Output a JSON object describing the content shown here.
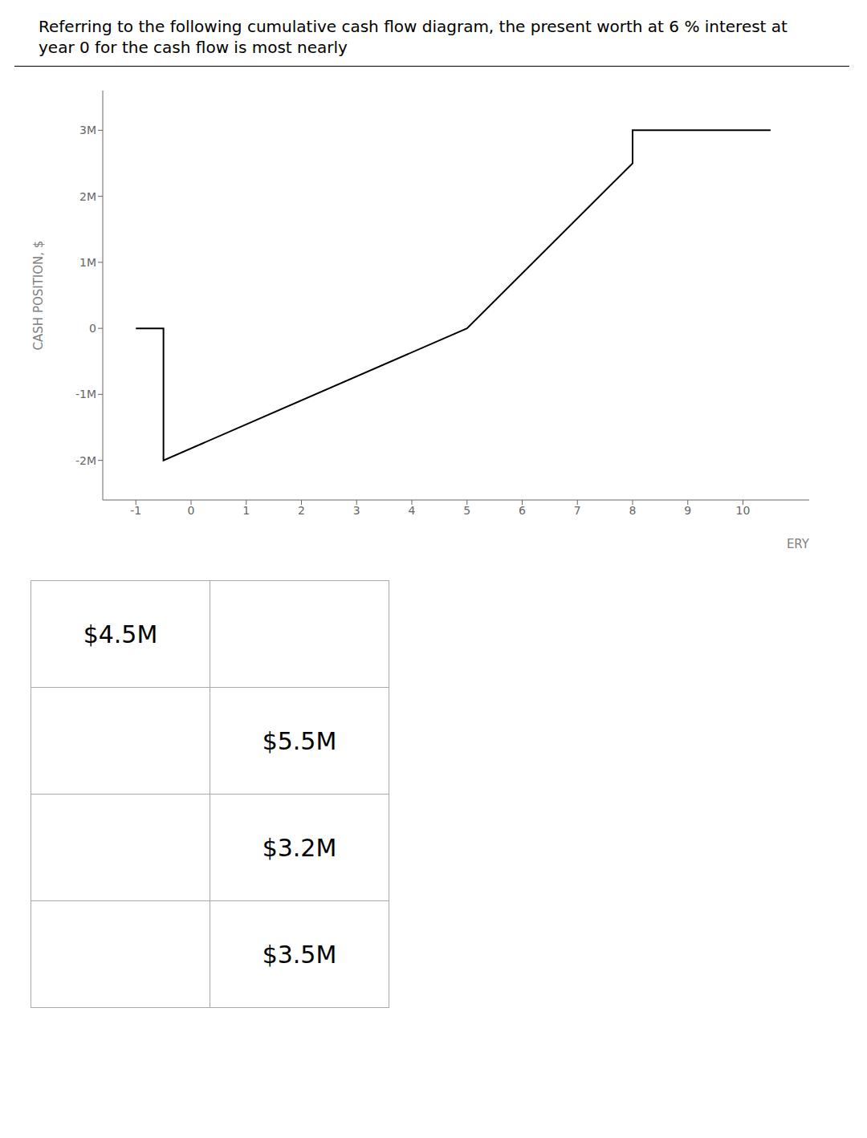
{
  "chart_data": {
    "type": "line",
    "title": "Referring to the following cumulative cash flow diagram, the present worth at 6 % interest at year 0 for the cash flow is most nearly",
    "ylabel": "CASH POSITION, $",
    "xlabel": "ERY",
    "x": [
      -1.0,
      -0.5,
      -0.5,
      5.0,
      8.0,
      8.0,
      10.5
    ],
    "values": [
      0.0,
      0.0,
      -2.0,
      0.0,
      2.5,
      3.0,
      3.0
    ],
    "color": "#000000",
    "xlim": [
      -1.6,
      11.2
    ],
    "ylim": [
      -2.6,
      3.6
    ],
    "xticks": [
      -1,
      0,
      1,
      2,
      3,
      4,
      5,
      6,
      7,
      8,
      9,
      10
    ],
    "yticks": [
      {
        "value": -2,
        "label": "-2M"
      },
      {
        "value": -1,
        "label": "-1M"
      },
      0,
      {
        "value": 1,
        "label": "1M"
      },
      {
        "value": 2,
        "label": "2M"
      },
      {
        "value": 3,
        "label": "3M"
      }
    ],
    "grid": false,
    "table": [
      [
        "$4.5M",
        null
      ],
      [
        null,
        "$5.5M"
      ],
      [
        null,
        "$3.2M"
      ],
      [
        null,
        "$3.5M"
      ]
    ]
  }
}
